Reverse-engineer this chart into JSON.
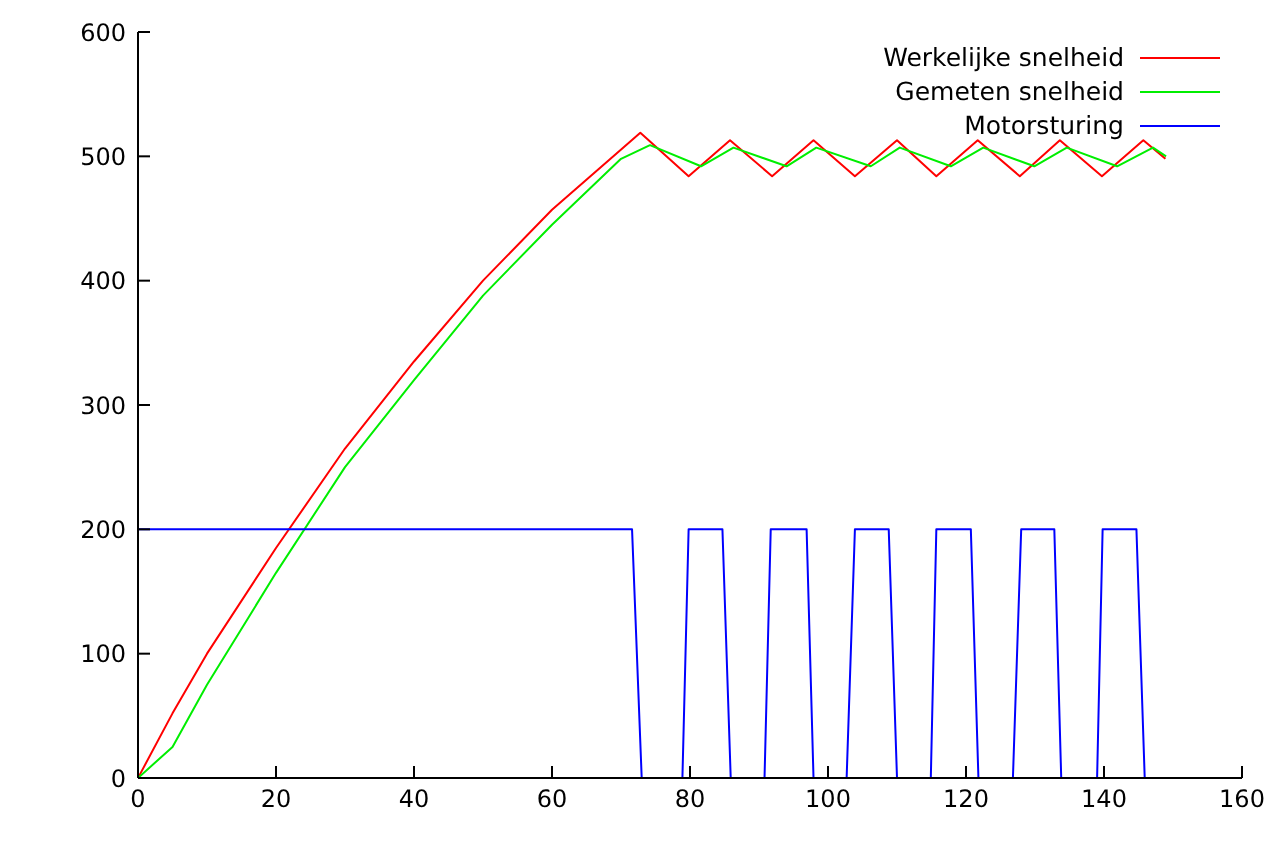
{
  "chart_data": {
    "type": "line",
    "xlim": [
      0,
      160
    ],
    "xticks": [
      0,
      20,
      40,
      60,
      80,
      100,
      120,
      140,
      160
    ],
    "ylim": [
      0,
      600
    ],
    "yticks": [
      0,
      100,
      200,
      300,
      400,
      500,
      600
    ],
    "grid": false,
    "legend": "top right",
    "marker": "none",
    "line_style": "solid",
    "series": [
      {
        "name": "Werkelijke snelheid",
        "color": "#ff0000",
        "x": [
          0,
          5,
          10,
          20,
          30,
          40,
          50,
          60,
          72.8,
          79.8,
          85.8,
          91.9,
          97.9,
          103.9,
          110,
          115.7,
          121.7,
          127.8,
          133.6,
          139.7,
          145.7,
          148.9
        ],
        "values": [
          0,
          52,
          100,
          185,
          265,
          335,
          400,
          457,
          519,
          484,
          513,
          484,
          513,
          484,
          513,
          484,
          513,
          484,
          513,
          484,
          513,
          498
        ]
      },
      {
        "name": "Gemeten snelheid",
        "color": "#00ee00",
        "x": [
          0,
          5,
          10,
          20,
          30,
          40,
          50,
          60,
          70,
          74.2,
          81.6,
          86.3,
          94,
          98.3,
          106.2,
          110.4,
          117.8,
          122.5,
          129.9,
          134.6,
          141.9,
          147.1,
          149
        ],
        "values": [
          0,
          25,
          75,
          165,
          250,
          320,
          388,
          445,
          498,
          509,
          492,
          507,
          492,
          507,
          492,
          507,
          492,
          507,
          492,
          507,
          492,
          507,
          500
        ]
      },
      {
        "name": "Motorsturing",
        "color": "#0000ff",
        "x": [
          0,
          71.6,
          73,
          78.9,
          79.8,
          84.7,
          85.9,
          90.8,
          91.7,
          96.9,
          97.9,
          102.7,
          103.9,
          108.8,
          110,
          114.9,
          115.7,
          120.7,
          121.8,
          126.8,
          128,
          132.8,
          133.8,
          139,
          139.8,
          144.7,
          145.9
        ],
        "values": [
          200,
          200,
          0,
          0,
          200,
          200,
          0,
          0,
          200,
          200,
          0,
          0,
          200,
          200,
          0,
          0,
          200,
          200,
          0,
          0,
          200,
          200,
          0,
          0,
          200,
          200,
          0
        ]
      }
    ]
  }
}
